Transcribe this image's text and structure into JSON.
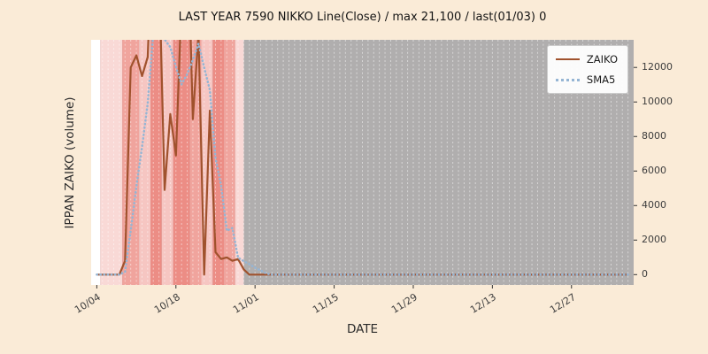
{
  "figure": {
    "background": "#faebd7",
    "plot_background": "#b0aeae",
    "grid_color": "#ffffff"
  },
  "chart_data": {
    "type": "line",
    "title": "LAST YEAR 7590 NIKKO Line(Close) / max 21,100 / last(01/03) 0",
    "xlabel": "DATE",
    "ylabel": "IPPAN ZAIKO (volume)",
    "legend_position": "upper right",
    "grid": "vertical-dashed-daily",
    "x_unit": "days since 10/04",
    "xlim": [
      -1,
      95
    ],
    "ylim": [
      -600,
      13600
    ],
    "x_ticks": [
      {
        "day": 0,
        "label": "10/04"
      },
      {
        "day": 14,
        "label": "10/18"
      },
      {
        "day": 28,
        "label": "11/01"
      },
      {
        "day": 42,
        "label": "11/15"
      },
      {
        "day": 56,
        "label": "11/29"
      },
      {
        "day": 70,
        "label": "12/13"
      },
      {
        "day": 84,
        "label": "12/27"
      }
    ],
    "y_ticks": [
      0,
      2000,
      4000,
      6000,
      8000,
      10000,
      12000
    ],
    "max_value": 21100,
    "last_point": {
      "date": "01/03",
      "value": 0
    },
    "highlight_bands": [
      {
        "from": -1,
        "to": 0.6,
        "color": "#ffffff"
      },
      {
        "from": 0.6,
        "to": 4.5,
        "color": "#f9d9d6"
      },
      {
        "from": 4.5,
        "to": 7.5,
        "color": "#f0a49d"
      },
      {
        "from": 7.5,
        "to": 9.5,
        "color": "#f6c6c2"
      },
      {
        "from": 9.5,
        "to": 11.5,
        "color": "#ec8d85"
      },
      {
        "from": 11.5,
        "to": 13.5,
        "color": "#f6c6c2"
      },
      {
        "from": 13.5,
        "to": 16.5,
        "color": "#ec8d85"
      },
      {
        "from": 16.5,
        "to": 18.5,
        "color": "#f0a49d"
      },
      {
        "from": 18.5,
        "to": 20.5,
        "color": "#f6c6c2"
      },
      {
        "from": 20.5,
        "to": 22.5,
        "color": "#ec8d85"
      },
      {
        "from": 22.5,
        "to": 24.5,
        "color": "#f0a49d"
      },
      {
        "from": 24.5,
        "to": 26.0,
        "color": "#f9d9d6"
      }
    ],
    "series": [
      {
        "name": "ZAIKO",
        "color": "#a0522d",
        "style": "solid",
        "values": [
          0,
          0,
          0,
          0,
          0,
          800,
          12000,
          12700,
          11500,
          12600,
          21100,
          18000,
          4900,
          9300,
          6900,
          16000,
          21000,
          9000,
          14000,
          0,
          9500,
          1300,
          900,
          1000,
          800,
          900,
          300,
          0,
          0,
          0,
          0,
          0,
          0,
          0,
          0,
          0,
          0,
          0,
          0,
          0,
          0,
          0,
          0,
          0,
          0,
          0,
          0,
          0,
          0,
          0,
          0,
          0,
          0,
          0,
          0,
          0,
          0,
          0,
          0,
          0,
          0,
          0,
          0,
          0,
          0,
          0,
          0,
          0,
          0,
          0,
          0,
          0,
          0,
          0,
          0,
          0,
          0,
          0,
          0,
          0,
          0,
          0,
          0,
          0,
          0,
          0,
          0,
          0,
          0,
          0,
          0,
          0,
          0,
          0,
          0
        ]
      },
      {
        "name": "SMA5",
        "color": "#95b5d4",
        "style": "dotted",
        "values": [
          0,
          0,
          0,
          0,
          0,
          160,
          2560,
          5100,
          7400,
          9920,
          13980,
          15180,
          13620,
          13180,
          12040,
          11020,
          11620,
          12440,
          13380,
          12000,
          10700,
          6760,
          5140,
          2540,
          2700,
          980,
          780,
          600,
          400,
          240,
          60,
          0,
          0,
          0,
          0,
          0,
          0,
          0,
          0,
          0,
          0,
          0,
          0,
          0,
          0,
          0,
          0,
          0,
          0,
          0,
          0,
          0,
          0,
          0,
          0,
          0,
          0,
          0,
          0,
          0,
          0,
          0,
          0,
          0,
          0,
          0,
          0,
          0,
          0,
          0,
          0,
          0,
          0,
          0,
          0,
          0,
          0,
          0,
          0,
          0,
          0,
          0,
          0,
          0,
          0,
          0,
          0,
          0,
          0,
          0,
          0,
          0,
          0,
          0,
          0
        ]
      }
    ]
  }
}
